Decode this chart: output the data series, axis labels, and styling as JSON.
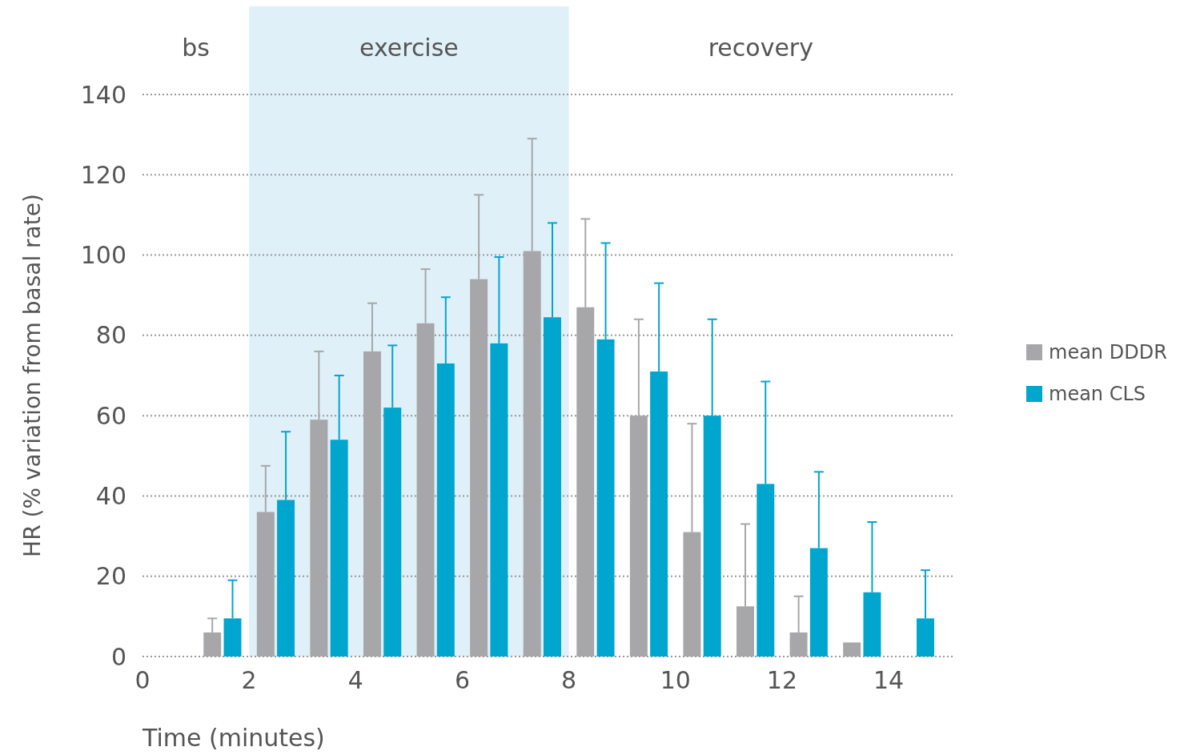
{
  "chart_data": {
    "type": "bar",
    "xlabel": "Time (minutes)",
    "ylabel": "HR (% variation from basal rate)",
    "x": [
      1.5,
      2.5,
      3.5,
      4.5,
      5.5,
      6.5,
      7.5,
      8.5,
      9.5,
      10.5,
      11.5,
      12.5,
      13.5,
      14.5
    ],
    "series": [
      {
        "name": "mean DDDR",
        "color": "#a7a7a9",
        "values": [
          6,
          36,
          59,
          76,
          83,
          94,
          101,
          87,
          60,
          31,
          12.5,
          6,
          3.5,
          null
        ],
        "errors": [
          [
            6,
            9.5
          ],
          [
            36,
            47.5
          ],
          [
            59,
            76
          ],
          [
            76,
            88
          ],
          [
            83,
            96.5
          ],
          [
            94,
            115
          ],
          [
            101,
            129
          ],
          [
            87,
            109
          ],
          [
            60,
            84
          ],
          [
            31,
            58
          ],
          [
            12.5,
            33
          ],
          [
            6,
            15
          ],
          null,
          null
        ]
      },
      {
        "name": "mean CLS",
        "color": "#00a6cd",
        "values": [
          9.5,
          39,
          54,
          62,
          73,
          78,
          84.5,
          79,
          71,
          60,
          43,
          27,
          16,
          9.5
        ],
        "errors": [
          [
            9.5,
            19
          ],
          [
            39,
            56
          ],
          [
            54,
            70
          ],
          [
            62,
            77.5
          ],
          [
            73,
            89.5
          ],
          [
            78,
            99.5
          ],
          [
            84.5,
            108
          ],
          [
            79,
            103
          ],
          [
            71,
            93
          ],
          [
            60,
            84
          ],
          [
            43,
            68.5
          ],
          [
            27,
            46
          ],
          [
            16,
            33.5
          ],
          [
            9.5,
            21.5
          ]
        ]
      }
    ],
    "xlim": [
      0,
      15.2
    ],
    "xticks": [
      0,
      2,
      4,
      6,
      8,
      10,
      12,
      14
    ],
    "ylim": [
      0,
      140
    ],
    "yticks": [
      0,
      20,
      40,
      60,
      80,
      100,
      120,
      140
    ],
    "grid": "y",
    "line_style": "dotted",
    "legend": "right",
    "bands": [
      {
        "axis": "x",
        "from": 2,
        "to": 8,
        "label": "exercise",
        "color": "#dff0f9"
      }
    ],
    "annotations": [
      "bs",
      "recovery"
    ]
  }
}
